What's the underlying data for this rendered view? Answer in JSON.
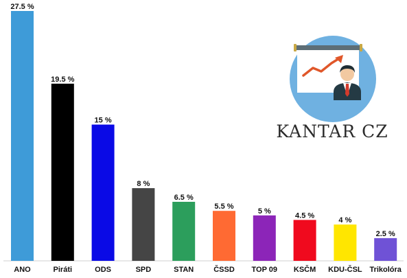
{
  "brand": {
    "name": "KANTAR CZ",
    "icon": "presentation-chart-person-icon",
    "circle_color": "#6fb1e1"
  },
  "chart_data": {
    "type": "bar",
    "categories": [
      "ANO",
      "Piráti",
      "ODS",
      "SPD",
      "STAN",
      "ČSSD",
      "TOP 09",
      "KSČM",
      "KDU-ČSL",
      "Trikolóra"
    ],
    "values": [
      27.5,
      19.5,
      15,
      8,
      6.5,
      5.5,
      5,
      4.5,
      4,
      2.5
    ],
    "value_labels": [
      "27.5 %",
      "19.5 %",
      "15 %",
      "8 %",
      "6.5 %",
      "5.5 %",
      "5 %",
      "4.5 %",
      "4 %",
      "2.5 %"
    ],
    "colors": [
      "#3e9bd8",
      "#000000",
      "#0a0ae6",
      "#454545",
      "#2c9e5c",
      "#ff6a33",
      "#8c25b8",
      "#f00a1e",
      "#ffe600",
      "#6f52d6"
    ],
    "title": "",
    "xlabel": "",
    "ylabel": "",
    "ylim": [
      0,
      27.5
    ],
    "grid": false,
    "legend": "none"
  }
}
